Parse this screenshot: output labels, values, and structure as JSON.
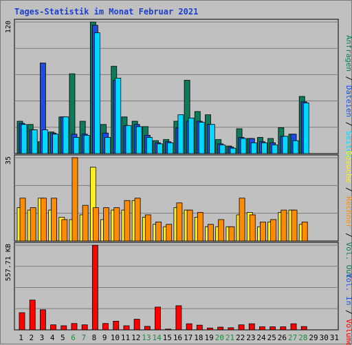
{
  "title": "Tages-Statistik im Monat Februar 2021",
  "colors": {
    "title": "#1a3fd0",
    "anfragen": "#0e7a5c",
    "dateien": "#1c4de0",
    "seiten": "#00d8ff",
    "besuche": "#ffee22",
    "rechner": "#ff8c00",
    "volumen": "#ff0000",
    "weekend_day": "#1c8a3c",
    "weekday": "#000000",
    "panel_bg": "#c0c0c0",
    "grid": "#7c7c7c"
  },
  "chart_data": [
    {
      "type": "bar",
      "name": "requests-panel",
      "categories": [
        "1",
        "2",
        "3",
        "4",
        "5",
        "6",
        "7",
        "8",
        "9",
        "10",
        "11",
        "12",
        "13",
        "14",
        "15",
        "16",
        "17",
        "18",
        "19",
        "20",
        "21",
        "22",
        "23",
        "24",
        "25",
        "26",
        "27",
        "28",
        "29",
        "30",
        "31"
      ],
      "y_axis_label": "120",
      "ylim": [
        0,
        122
      ],
      "series": [
        {
          "name": "Anfragen",
          "color_key": "anfragen",
          "values": [
            30,
            27,
            11,
            20,
            34,
            74,
            30,
            122,
            27,
            81,
            34,
            30,
            25,
            12,
            13,
            30,
            68,
            39,
            36,
            13,
            7,
            23,
            14,
            15,
            14,
            24,
            18,
            53,
            0,
            0,
            0
          ]
        },
        {
          "name": "Dateien",
          "color_key": "dateien",
          "values": [
            28,
            22,
            84,
            19,
            34,
            18,
            18,
            119,
            19,
            68,
            26,
            27,
            17,
            10,
            11,
            24,
            30,
            30,
            27,
            9,
            6,
            15,
            14,
            11,
            10,
            16,
            18,
            48,
            0,
            0,
            0
          ]
        },
        {
          "name": "Seiten",
          "color_key": "seiten",
          "values": [
            27,
            22,
            22,
            18,
            34,
            15,
            17,
            112,
            15,
            70,
            26,
            25,
            15,
            9,
            10,
            36,
            33,
            29,
            27,
            8,
            5,
            14,
            10,
            10,
            8,
            16,
            12,
            47,
            0,
            0,
            0
          ]
        }
      ]
    },
    {
      "type": "bar",
      "name": "visits-panel",
      "categories": [
        "1",
        "2",
        "3",
        "4",
        "5",
        "6",
        "7",
        "8",
        "9",
        "10",
        "11",
        "12",
        "13",
        "14",
        "15",
        "16",
        "17",
        "18",
        "19",
        "20",
        "21",
        "22",
        "23",
        "24",
        "25",
        "26",
        "27",
        "28",
        "29",
        "30",
        "31"
      ],
      "y_axis_label": "35",
      "ylim": [
        0,
        35
      ],
      "series": [
        {
          "name": "Besuche",
          "color_key": "besuche",
          "values": [
            14,
            13,
            18,
            13,
            10,
            9,
            11,
            31,
            9,
            13,
            13,
            17,
            10,
            7,
            6,
            14,
            13,
            10,
            6,
            6,
            6,
            11,
            12,
            6,
            8,
            12,
            13,
            7,
            0,
            0,
            0
          ]
        },
        {
          "name": "Rechner",
          "color_key": "rechner",
          "values": [
            18,
            14,
            18,
            18,
            9,
            35,
            15,
            14,
            14,
            14,
            17,
            18,
            11,
            8,
            7,
            16,
            13,
            12,
            7,
            9,
            6,
            18,
            11,
            8,
            9,
            13,
            13,
            8,
            0,
            0,
            0
          ]
        }
      ]
    },
    {
      "type": "bar",
      "name": "volume-panel",
      "categories": [
        "1",
        "2",
        "3",
        "4",
        "5",
        "6",
        "7",
        "8",
        "9",
        "10",
        "11",
        "12",
        "13",
        "14",
        "15",
        "16",
        "17",
        "18",
        "19",
        "20",
        "21",
        "22",
        "23",
        "24",
        "25",
        "26",
        "27",
        "28",
        "29",
        "30",
        "31"
      ],
      "y_axis_label": "557.71 KB",
      "ylim": [
        0,
        557.71
      ],
      "series": [
        {
          "name": "Volumen",
          "color_key": "volumen",
          "values": [
            113,
            196,
            132,
            33,
            27,
            42,
            33,
            557,
            42,
            57,
            27,
            70,
            23,
            150,
            5,
            159,
            40,
            31,
            12,
            18,
            14,
            33,
            40,
            20,
            20,
            20,
            40,
            22,
            0,
            0,
            0
          ]
        }
      ]
    }
  ],
  "legend_right_top": [
    {
      "text": "Anfragen",
      "color_key": "anfragen"
    },
    {
      "text": "Dateien",
      "color_key": "dateien"
    },
    {
      "text": "Seiten",
      "color_key": "seiten"
    }
  ],
  "legend_right_middle": [
    {
      "text": "Besuche",
      "color_key": "besuche"
    },
    {
      "text": "Rechner",
      "color_key": "rechner"
    },
    {
      "text": "Vol. Out",
      "color_key": "anfragen"
    }
  ],
  "legend_right_bottom": [
    {
      "text": "Vol. In",
      "color_key": "dateien"
    },
    {
      "text": "Volumen",
      "color_key": "volumen"
    }
  ],
  "weekend_days": [
    "6",
    "7",
    "13",
    "14",
    "20",
    "21",
    "27",
    "28"
  ]
}
